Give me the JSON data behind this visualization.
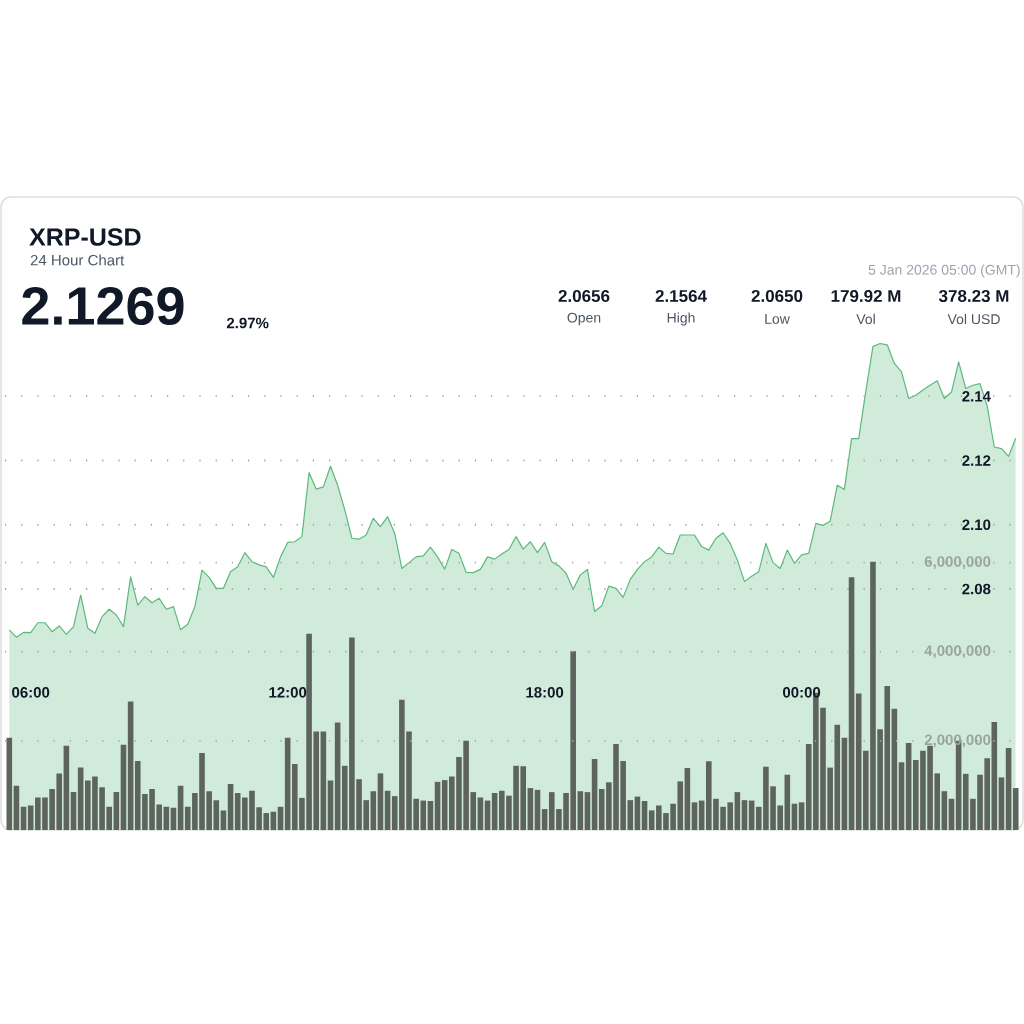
{
  "chart_data": {
    "type": "area",
    "title": "XRP-USD",
    "subtitle": "24 Hour Chart",
    "annotations": [
      "2.1269",
      "2.97%",
      "5 Jan 2026 05:00 (GMT)",
      "2.0656",
      "Open",
      "2.1564",
      "High",
      "2.0650",
      "Low",
      "179.92 M",
      "Vol",
      "378.23 M",
      "Vol USD"
    ],
    "x": [
      5.5,
      5.6667,
      5.8333,
      6,
      6.1667,
      6.3333,
      6.5,
      6.6667,
      6.8333,
      7,
      7.1667,
      7.3333,
      7.5,
      7.6667,
      7.8333,
      8,
      8.1667,
      8.3333,
      8.5,
      8.6667,
      8.8333,
      9,
      9.1667,
      9.3333,
      9.5,
      9.6667,
      9.8333,
      10,
      10.1667,
      10.3333,
      10.5,
      10.6667,
      10.8333,
      11,
      11.1667,
      11.3333,
      11.5,
      11.6667,
      11.8333,
      12,
      12.1667,
      12.3333,
      12.5,
      12.6667,
      12.8333,
      13,
      13.1667,
      13.3333,
      13.5,
      13.6667,
      13.8333,
      14,
      14.1667,
      14.3333,
      14.5,
      14.6667,
      14.8333,
      15,
      15.1667,
      15.3333,
      15.5,
      15.6667,
      15.8333,
      16,
      16.1667,
      16.3333,
      16.5,
      16.6667,
      16.8333,
      17,
      17.1667,
      17.3333,
      17.5,
      17.6667,
      17.8333,
      18,
      18.1667,
      18.3333,
      18.5,
      18.6667,
      18.8333,
      19,
      19.1667,
      19.3333,
      19.5,
      19.6667,
      19.8333,
      20,
      20.1667,
      20.3333,
      20.5,
      20.6667,
      20.8333,
      21,
      21.1667,
      21.3333,
      21.5,
      21.6667,
      21.8333,
      22,
      22.1667,
      22.3333,
      22.5,
      22.6667,
      22.8333,
      23,
      23.1667,
      23.3333,
      23.5,
      23.6667,
      23.8333,
      24,
      24.1667,
      24.3333,
      24.5,
      24.6667,
      24.8333,
      25,
      25.1667,
      25.3333,
      25.5,
      25.6667,
      25.8333,
      26,
      26.1667,
      26.3333,
      26.5,
      26.6667,
      26.8333,
      27,
      27.1667,
      27.3333,
      27.5,
      27.6667,
      27.8333,
      28,
      28.1667,
      28.3333,
      28.5,
      28.6667,
      28.8333,
      29
    ],
    "xlim": [
      5.4,
      29.1
    ],
    "xticks": [
      {
        "value": 6,
        "label": "06:00"
      },
      {
        "value": 12,
        "label": "12:00"
      },
      {
        "value": 18,
        "label": "18:00"
      },
      {
        "value": 24,
        "label": "00:00"
      }
    ],
    "ylim": [
      2.005,
      2.202
    ],
    "yticks": [
      2.08,
      {
        "value": 2.1,
        "label": "2.10"
      },
      2.12,
      2.14
    ],
    "y2lim": [
      0,
      14200000
    ],
    "y2ticks": [
      {
        "value": 2000000,
        "label": "2,000,000"
      },
      {
        "value": 4000000,
        "label": "4,000,000"
      },
      {
        "value": 6000000,
        "label": "6,000,000"
      }
    ],
    "grid": "y",
    "series": [
      {
        "color": "#5cb97b",
        "values": [
          2.0673,
          2.065,
          2.0665,
          2.0664,
          2.0695,
          2.0695,
          2.0667,
          2.0685,
          2.0659,
          2.0683,
          2.0781,
          2.0678,
          2.0662,
          2.0714,
          2.0737,
          2.0719,
          2.0683,
          2.0838,
          2.075,
          2.0776,
          2.0757,
          2.0771,
          2.0737,
          2.0745,
          2.0673,
          2.069,
          2.0745,
          2.0859,
          2.0836,
          2.0802,
          2.0802,
          2.0854,
          2.0869,
          2.0913,
          2.0885,
          2.0875,
          2.0869,
          2.0836,
          2.09,
          2.0945,
          2.0947,
          2.0963,
          2.1162,
          2.1111,
          2.1118,
          2.1182,
          2.1123,
          2.1046,
          2.0958,
          2.0955,
          2.0968,
          2.102,
          2.0994,
          2.1025,
          2.0973,
          2.0864,
          2.0882,
          2.09,
          2.0903,
          2.093,
          2.09,
          2.0862,
          2.0923,
          2.0911,
          2.0852,
          2.0851,
          2.0861,
          2.09,
          2.0893,
          2.0909,
          2.0923,
          2.0963,
          2.0924,
          2.0947,
          2.0913,
          2.0945,
          2.0885,
          2.0872,
          2.0849,
          2.0799,
          2.0844,
          2.0861,
          2.073,
          2.0748,
          2.0809,
          2.0802,
          2.0774,
          2.083,
          2.0861,
          2.0885,
          2.09,
          2.093,
          2.0911,
          2.0909,
          2.0968,
          2.0968,
          2.0968,
          2.0932,
          2.0921,
          2.0958,
          2.0975,
          2.0942,
          2.089,
          2.0823,
          2.084,
          2.0854,
          2.0942,
          2.0882,
          2.0864,
          2.0921,
          2.088,
          2.0906,
          2.0911,
          2.1004,
          2.0998,
          2.1011,
          2.1123,
          2.111,
          2.1268,
          2.1268,
          2.1416,
          2.1555,
          2.1564,
          2.156,
          2.1502,
          2.1476,
          2.1393,
          2.1403,
          2.1419,
          2.1434,
          2.1448,
          2.1393,
          2.1413,
          2.1507,
          2.1424,
          2.1434,
          2.1439,
          2.1369,
          2.1242,
          2.1237,
          2.1213,
          2.1269
        ]
      },
      {
        "type": "bar",
        "axis": "y2",
        "color": "#5d645e",
        "values": [
          2070000,
          990000,
          520000,
          550000,
          730000,
          730000,
          920000,
          1270000,
          1890000,
          850000,
          1400000,
          1110000,
          1200000,
          960000,
          520000,
          850000,
          1910000,
          2880000,
          1550000,
          810000,
          920000,
          570000,
          520000,
          500000,
          990000,
          520000,
          830000,
          1730000,
          870000,
          670000,
          440000,
          1030000,
          830000,
          730000,
          880000,
          510000,
          380000,
          410000,
          520000,
          2070000,
          1480000,
          720000,
          4400000,
          2210000,
          2210000,
          1110000,
          2410000,
          1440000,
          4320000,
          1140000,
          670000,
          870000,
          1270000,
          880000,
          760000,
          2920000,
          2210000,
          700000,
          660000,
          650000,
          1080000,
          1120000,
          1200000,
          1640000,
          2000000,
          850000,
          730000,
          660000,
          830000,
          880000,
          770000,
          1440000,
          1430000,
          940000,
          900000,
          470000,
          850000,
          470000,
          830000,
          4010000,
          870000,
          850000,
          1590000,
          920000,
          1070000,
          1930000,
          1550000,
          670000,
          750000,
          650000,
          440000,
          550000,
          380000,
          590000,
          1090000,
          1390000,
          620000,
          660000,
          1540000,
          700000,
          520000,
          620000,
          850000,
          670000,
          660000,
          520000,
          1420000,
          980000,
          550000,
          1240000,
          590000,
          620000,
          1930000,
          3080000,
          2740000,
          1400000,
          2360000,
          2070000,
          5670000,
          3060000,
          1780000,
          6020000,
          2260000,
          3230000,
          2720000,
          1520000,
          1950000,
          1570000,
          1780000,
          1890000,
          1270000,
          870000,
          700000,
          2000000,
          1260000,
          700000,
          1240000,
          1610000,
          2420000,
          1180000,
          1840000,
          940000
        ]
      }
    ]
  }
}
